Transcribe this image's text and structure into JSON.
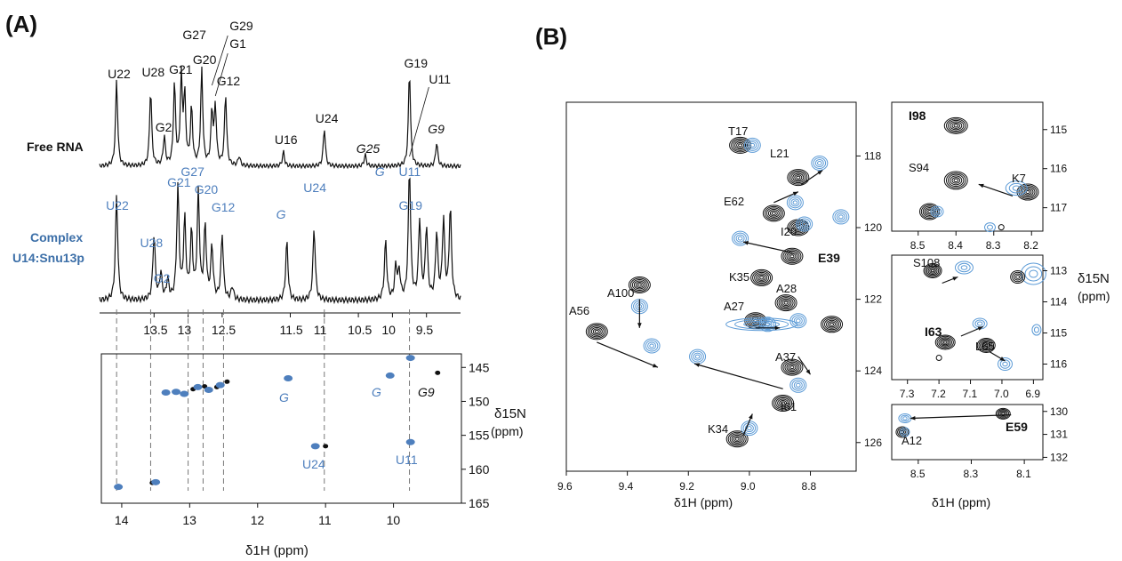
{
  "panel_a": {
    "label": "(A)",
    "free_label": "Free RNA",
    "complex_label_line1": "Complex",
    "complex_label_line2": "U14:Snu13p",
    "free_peak_labels": [
      {
        "text": "U22",
        "x": 14.05
      },
      {
        "text": "U28",
        "x": 13.55
      },
      {
        "text": "G2",
        "x": 13.35
      },
      {
        "text": "G21",
        "x": 13.15
      },
      {
        "text": "G27",
        "x": 12.95
      },
      {
        "text": "G20",
        "x": 12.8
      },
      {
        "text": "G29",
        "x": 12.6
      },
      {
        "text": "G1",
        "x": 12.6
      },
      {
        "text": "G12",
        "x": 12.45
      },
      {
        "text": "U16",
        "x": 11.6
      },
      {
        "text": "U24",
        "x": 11.0
      },
      {
        "text": "G25",
        "x": 10.4
      },
      {
        "text": "G19",
        "x": 9.75
      },
      {
        "text": "U11",
        "x": 9.7
      },
      {
        "text": "G9",
        "x": 9.35
      }
    ],
    "complex_peak_labels": [
      {
        "text": "U22",
        "x": 14.05
      },
      {
        "text": "U28",
        "x": 13.55
      },
      {
        "text": "G2",
        "x": 13.35
      },
      {
        "text": "G21",
        "x": 13.15
      },
      {
        "text": "G27",
        "x": 12.95
      },
      {
        "text": "G20",
        "x": 12.75
      },
      {
        "text": "G12",
        "x": 12.5
      },
      {
        "text": "G",
        "x": 11.55
      },
      {
        "text": "U24",
        "x": 11.15
      },
      {
        "text": "G",
        "x": 10.1
      },
      {
        "text": "G19",
        "x": 9.75
      },
      {
        "text": "U11",
        "x": 9.75
      }
    ],
    "spectrum_ticks": [
      "13.5",
      "13",
      "12.5",
      "11.5",
      "11",
      "10.5",
      "10",
      "9.5"
    ],
    "hsqc": {
      "x_ticks": [
        "14",
        "13",
        "12",
        "11",
        "10"
      ],
      "y_ticks": [
        "145",
        "150",
        "155",
        "160",
        "165"
      ],
      "ylabel_line1": "δ15N",
      "ylabel_line2": "(ppm)",
      "xlabel": "δ1H (ppm)",
      "annotations": [
        "G",
        "G",
        "G9",
        "U24",
        "U11"
      ]
    }
  },
  "panel_b": {
    "label": "(B)",
    "main": {
      "x_ticks": [
        "9.6",
        "9.4",
        "9.2",
        "9.0",
        "8.8"
      ],
      "y_ticks": [
        "118",
        "120",
        "122",
        "124",
        "126"
      ],
      "xlabel": "δ1H (ppm)",
      "residues": [
        "T17",
        "L21",
        "E62",
        "I20",
        "E39",
        "K35",
        "A100",
        "A28",
        "A27",
        "A56",
        "A37",
        "I61",
        "K34"
      ]
    },
    "inset1": {
      "x_ticks": [
        "8.5",
        "8.4",
        "8.3",
        "8.2"
      ],
      "y_ticks": [
        "115",
        "116",
        "117"
      ],
      "residues": [
        "I98",
        "S94",
        "K7"
      ]
    },
    "inset2": {
      "x_ticks": [
        "7.3",
        "7.2",
        "7.1",
        "7.0",
        "6.9"
      ],
      "y_ticks": [
        "113",
        "114",
        "115",
        "116"
      ],
      "residues": [
        "S108",
        "I63",
        "L65"
      ],
      "ylabel_line1": "δ15N",
      "ylabel_line2": "(ppm)"
    },
    "inset3": {
      "x_ticks": [
        "8.5",
        "8.3",
        "8.1"
      ],
      "y_ticks": [
        "130",
        "131",
        "132"
      ],
      "residues": [
        "E59",
        "A12"
      ],
      "xlabel": "δ1H (ppm)"
    }
  },
  "chart_data": [
    {
      "type": "line",
      "panel": "A-1D",
      "x_axis": "δ1H (ppm)",
      "xlim": [
        14.3,
        9.0
      ],
      "series": [
        {
          "name": "Free RNA",
          "peaks": [
            [
              14.05,
              0.9
            ],
            [
              13.55,
              0.8
            ],
            [
              13.35,
              0.3
            ],
            [
              13.2,
              0.85
            ],
            [
              13.1,
              0.9
            ],
            [
              13.05,
              0.7
            ],
            [
              12.95,
              0.6
            ],
            [
              12.8,
              1.0
            ],
            [
              12.65,
              0.55
            ],
            [
              12.6,
              0.6
            ],
            [
              12.45,
              0.75
            ],
            [
              12.25,
              0.1
            ],
            [
              11.6,
              0.15
            ],
            [
              11.0,
              0.4
            ],
            [
              10.4,
              0.12
            ],
            [
              9.75,
              1.0
            ],
            [
              9.35,
              0.25
            ]
          ]
        },
        {
          "name": "Complex U14:Snu13p",
          "peaks": [
            [
              14.05,
              0.8
            ],
            [
              13.5,
              0.5
            ],
            [
              13.4,
              0.2
            ],
            [
              13.3,
              0.15
            ],
            [
              13.15,
              0.85
            ],
            [
              13.05,
              0.6
            ],
            [
              12.95,
              0.5
            ],
            [
              12.85,
              0.8
            ],
            [
              12.75,
              0.55
            ],
            [
              12.65,
              0.4
            ],
            [
              12.5,
              0.5
            ],
            [
              12.35,
              0.1
            ],
            [
              11.55,
              0.45
            ],
            [
              11.15,
              0.55
            ],
            [
              10.1,
              0.45
            ],
            [
              9.95,
              0.25
            ],
            [
              9.9,
              0.2
            ],
            [
              9.75,
              1.0
            ],
            [
              9.6,
              0.6
            ],
            [
              9.5,
              0.55
            ],
            [
              9.35,
              0.5
            ],
            [
              9.25,
              0.6
            ],
            [
              9.15,
              0.7
            ]
          ]
        }
      ]
    },
    {
      "type": "scatter",
      "panel": "A-HSQC",
      "xlim": [
        14.3,
        9.0
      ],
      "ylim": [
        143,
        165
      ],
      "series": [
        {
          "name": "free",
          "color": "#111111",
          "points": [
            [
              14.05,
              162.5
            ],
            [
              13.55,
              162.0
            ],
            [
              12.95,
              148.2
            ],
            [
              12.78,
              147.8
            ],
            [
              12.6,
              147.9
            ],
            [
              12.45,
              147.1
            ],
            [
              11.0,
              156.6
            ],
            [
              9.35,
              145.8
            ]
          ]
        },
        {
          "name": "complex",
          "color": "#4e7fbd",
          "points": [
            [
              14.05,
              162.6
            ],
            [
              13.5,
              161.9
            ],
            [
              13.35,
              148.7
            ],
            [
              13.2,
              148.6
            ],
            [
              13.08,
              148.9
            ],
            [
              12.88,
              147.9
            ],
            [
              12.72,
              148.3
            ],
            [
              12.55,
              147.6
            ],
            [
              11.55,
              146.6
            ],
            [
              11.15,
              156.6
            ],
            [
              10.05,
              146.2
            ],
            [
              9.75,
              143.6
            ],
            [
              9.75,
              156.0
            ]
          ]
        }
      ]
    },
    {
      "type": "scatter",
      "panel": "B-main",
      "xlim": [
        9.6,
        8.65
      ],
      "ylim": [
        116.5,
        126.8
      ],
      "series": [
        {
          "name": "free",
          "color": "#111111",
          "points": [
            [
              9.03,
              117.7
            ],
            [
              8.84,
              118.6
            ],
            [
              8.92,
              119.6
            ],
            [
              8.84,
              120.0
            ],
            [
              8.86,
              120.8
            ],
            [
              8.96,
              121.4
            ],
            [
              9.36,
              121.6
            ],
            [
              8.88,
              122.1
            ],
            [
              8.98,
              122.6
            ],
            [
              8.73,
              122.7
            ],
            [
              9.5,
              122.9
            ],
            [
              8.86,
              123.9
            ],
            [
              8.89,
              124.9
            ],
            [
              9.04,
              125.9
            ]
          ]
        },
        {
          "name": "complex",
          "color": "#5b9ad6",
          "points": [
            [
              8.99,
              117.7
            ],
            [
              8.77,
              118.2
            ],
            [
              8.85,
              119.3
            ],
            [
              8.82,
              119.9
            ],
            [
              8.7,
              119.7
            ],
            [
              9.03,
              120.3
            ],
            [
              9.36,
              122.2
            ],
            [
              9.32,
              123.3
            ],
            [
              8.84,
              122.6
            ],
            [
              8.94,
              122.7
            ],
            [
              9.17,
              123.6
            ],
            [
              8.84,
              124.4
            ],
            [
              9.0,
              125.6
            ]
          ]
        }
      ]
    }
  ]
}
